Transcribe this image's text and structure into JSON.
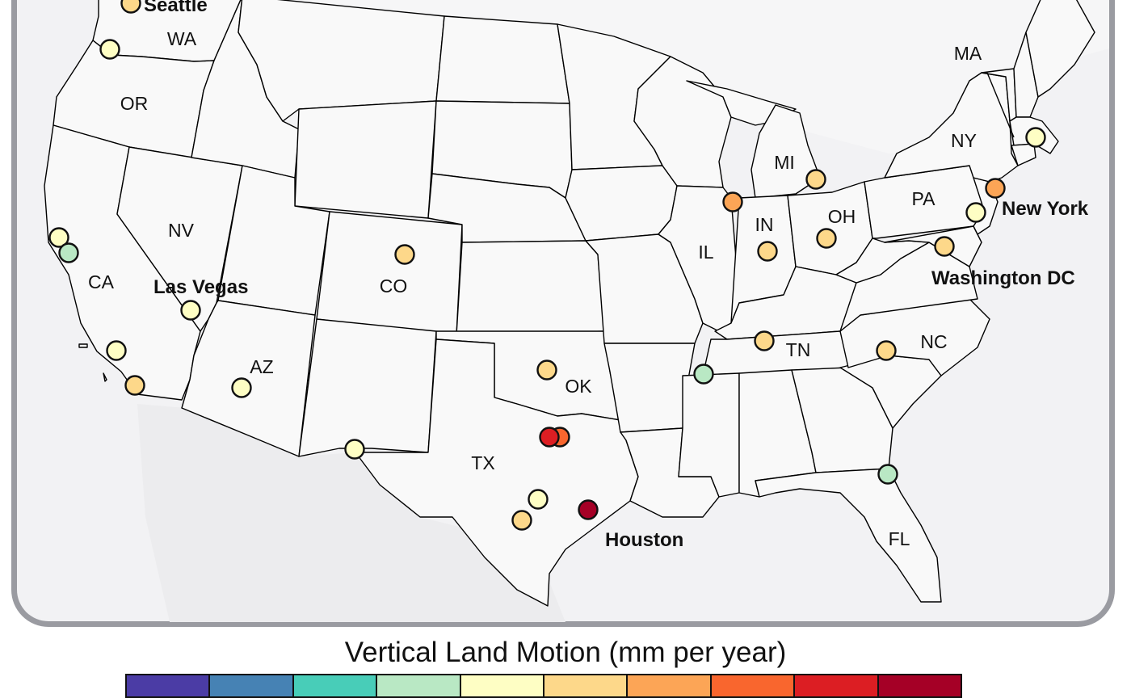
{
  "legend": {
    "title": "Vertical Land Motion (mm per year)",
    "bins": [
      {
        "color": "#4b3ca5"
      },
      {
        "color": "#4682b4"
      },
      {
        "color": "#48cdb8"
      },
      {
        "color": "#b9e8c4"
      },
      {
        "color": "#fefec4"
      },
      {
        "color": "#fdd88a"
      },
      {
        "color": "#fca556"
      },
      {
        "color": "#f9662e"
      },
      {
        "color": "#dc1e23"
      },
      {
        "color": "#a50026"
      }
    ]
  },
  "state_labels": [
    {
      "id": "wa",
      "text": "WA"
    },
    {
      "id": "or",
      "text": "OR"
    },
    {
      "id": "ca",
      "text": "CA"
    },
    {
      "id": "nv",
      "text": "NV"
    },
    {
      "id": "az",
      "text": "AZ"
    },
    {
      "id": "co",
      "text": "CO"
    },
    {
      "id": "tx",
      "text": "TX"
    },
    {
      "id": "ok",
      "text": "OK"
    },
    {
      "id": "il",
      "text": "IL"
    },
    {
      "id": "in",
      "text": "IN"
    },
    {
      "id": "oh",
      "text": "OH"
    },
    {
      "id": "mi",
      "text": "MI"
    },
    {
      "id": "pa",
      "text": "PA"
    },
    {
      "id": "ny",
      "text": "NY"
    },
    {
      "id": "ma",
      "text": "MA"
    },
    {
      "id": "tn",
      "text": "TN"
    },
    {
      "id": "nc",
      "text": "NC"
    },
    {
      "id": "fl",
      "text": "FL"
    }
  ],
  "city_labels": [
    {
      "id": "seattle",
      "text": "Seattle"
    },
    {
      "id": "las-vegas",
      "text": "Las Vegas"
    },
    {
      "id": "houston",
      "text": "Houston"
    },
    {
      "id": "new-york",
      "text": "New York"
    },
    {
      "id": "washington-dc",
      "text": "Washington DC"
    }
  ],
  "stations": [
    {
      "name": "seattle",
      "color": "#fdd88a"
    },
    {
      "name": "wa-coast",
      "color": "#fefec4"
    },
    {
      "name": "sf-bay-1",
      "color": "#fefec4"
    },
    {
      "name": "sf-bay-2",
      "color": "#b9e8c4"
    },
    {
      "name": "las-vegas",
      "color": "#fefec4"
    },
    {
      "name": "ca-south-1",
      "color": "#fefec4"
    },
    {
      "name": "ca-south-2",
      "color": "#fdd88a"
    },
    {
      "name": "az",
      "color": "#fefec4"
    },
    {
      "name": "co",
      "color": "#fdd88a"
    },
    {
      "name": "el-paso",
      "color": "#fefec4"
    },
    {
      "name": "ok",
      "color": "#fdd88a"
    },
    {
      "name": "dfw-1",
      "color": "#dc1e23"
    },
    {
      "name": "dfw-2",
      "color": "#f9662e"
    },
    {
      "name": "tx-central-1",
      "color": "#fefec4"
    },
    {
      "name": "tx-central-2",
      "color": "#fdd88a"
    },
    {
      "name": "houston",
      "color": "#a50026"
    },
    {
      "name": "chicago",
      "color": "#fca556"
    },
    {
      "name": "in",
      "color": "#fdd88a"
    },
    {
      "name": "oh",
      "color": "#fdd88a"
    },
    {
      "name": "mi",
      "color": "#fdd88a"
    },
    {
      "name": "memphis",
      "color": "#b9e8c4"
    },
    {
      "name": "tn",
      "color": "#fdd88a"
    },
    {
      "name": "nc",
      "color": "#fdd88a"
    },
    {
      "name": "jacksonville",
      "color": "#b9e8c4"
    },
    {
      "name": "new-york",
      "color": "#fca556"
    },
    {
      "name": "philadelphia",
      "color": "#fefec4"
    },
    {
      "name": "washington-dc",
      "color": "#fdd88a"
    },
    {
      "name": "boston",
      "color": "#fefec4"
    }
  ]
}
